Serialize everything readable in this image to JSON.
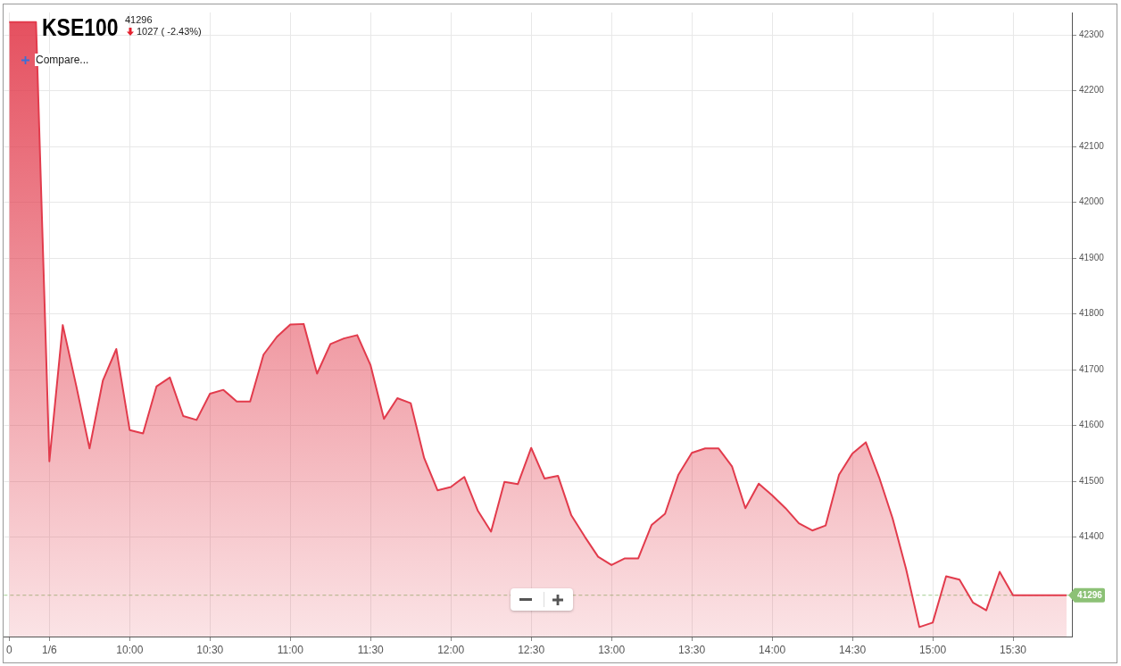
{
  "chart_data": {
    "type": "area",
    "title": "KSE100",
    "subtitle": "41296",
    "annotations": [
      "1027 ( -2.43%)",
      "Compare..."
    ],
    "categories": [
      "0",
      null,
      null,
      "1/6",
      null,
      null,
      null,
      null,
      null,
      "10:00",
      null,
      null,
      null,
      null,
      null,
      "10:30",
      null,
      null,
      null,
      null,
      null,
      "11:00",
      null,
      null,
      null,
      null,
      null,
      "11:30",
      null,
      null,
      null,
      null,
      null,
      "12:00",
      null,
      null,
      null,
      null,
      null,
      "12:30",
      null,
      null,
      null,
      null,
      null,
      "13:00",
      null,
      null,
      null,
      null,
      null,
      "13:30",
      null,
      null,
      null,
      null,
      null,
      "14:00",
      null,
      null,
      null,
      null,
      null,
      "14:30",
      null,
      null,
      null,
      null,
      null,
      "15:00",
      null,
      null,
      null,
      null,
      null,
      "15:30",
      null,
      null,
      null,
      null
    ],
    "series": [
      {
        "color": "#e23b4c",
        "values": [
          42323,
          42323,
          42323,
          41536,
          41780,
          41672,
          41559,
          41681,
          41737,
          41592,
          41586,
          41670,
          41686,
          41617,
          41610,
          41657,
          41664,
          41643,
          41643,
          41727,
          41759,
          41781,
          41782,
          41693,
          41746,
          41756,
          41762,
          41708,
          41612,
          41649,
          41640,
          41542,
          41484,
          41490,
          41508,
          41448,
          41410,
          41499,
          41495,
          41560,
          41505,
          41510,
          41439,
          41401,
          41365,
          41350,
          41362,
          41362,
          41422,
          41442,
          41512,
          41551,
          41559,
          41559,
          41527,
          41452,
          41496,
          41475,
          41452,
          41425,
          41412,
          41421,
          41512,
          41550,
          41570,
          41507,
          41434,
          41344,
          41239,
          41247,
          41330,
          41324,
          41283,
          41269,
          41338,
          41296,
          41296,
          41296,
          41296,
          41296
        ]
      }
    ],
    "ylim": [
      41222,
      42340
    ],
    "yticks": [
      41400,
      41500,
      41600,
      41700,
      41800,
      41900,
      42000,
      42100,
      42200,
      42300
    ],
    "grid": true,
    "ref_lines": [
      {
        "axis": "y",
        "value": 41296,
        "label": "41296",
        "color": "#8cc176",
        "line_style": "dashed"
      }
    ]
  }
}
